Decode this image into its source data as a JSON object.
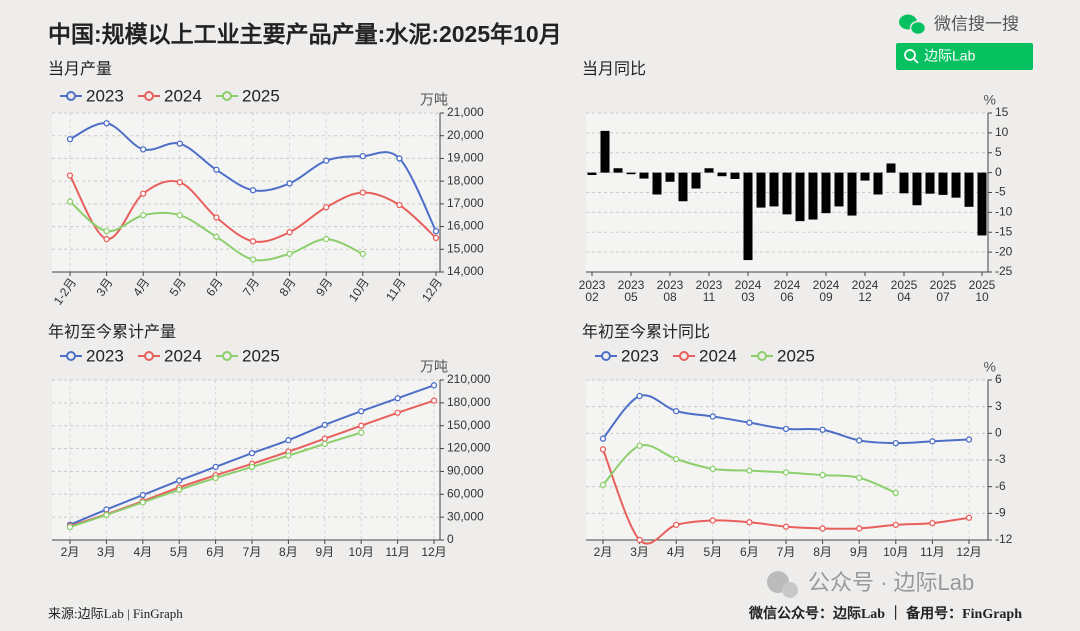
{
  "title": "中国:规模以上工业主要产品产量:水泥:2025年10月",
  "search": {
    "label": "微信搜一搜",
    "button": "边际Lab"
  },
  "footer": {
    "source": "来源:边际Lab | FinGraph",
    "watermark": "公众号 · 边际Lab",
    "account": "微信公众号：边际Lab ｜ 备用号：FinGraph"
  },
  "chart_data": [
    {
      "type": "line",
      "title": "当月产量",
      "ylabel": "万吨",
      "smooth": true,
      "grid": true,
      "categories": [
        "1-2月",
        "3月",
        "4月",
        "5月",
        "6月",
        "7月",
        "8月",
        "9月",
        "10月",
        "11月",
        "12月"
      ],
      "series": [
        {
          "name": "2023",
          "color": "#4e6fc8",
          "values": [
            19850,
            20550,
            19400,
            19650,
            18500,
            17600,
            17900,
            18900,
            19100,
            19000,
            15800
          ]
        },
        {
          "name": "2024",
          "color": "#e8605c",
          "values": [
            18250,
            15450,
            17450,
            17950,
            16400,
            15350,
            15750,
            16850,
            17500,
            16950,
            15500
          ]
        },
        {
          "name": "2025",
          "color": "#8ccf6c",
          "values": [
            17100,
            15800,
            16500,
            16500,
            15550,
            14550,
            14800,
            15450,
            14800,
            null,
            null
          ]
        }
      ],
      "ylim": [
        14000,
        21000
      ],
      "yticks": [
        {
          "value": 14000,
          "label": "14,000"
        },
        {
          "value": 15000,
          "label": "15,000"
        },
        {
          "value": 16000,
          "label": "16,000"
        },
        {
          "value": 17000,
          "label": "17,000"
        },
        {
          "value": 18000,
          "label": "18,000"
        },
        {
          "value": 19000,
          "label": "19,000"
        },
        {
          "value": 20000,
          "label": "20,000"
        },
        {
          "value": 21000,
          "label": "21,000"
        }
      ]
    },
    {
      "type": "bar",
      "title": "当月同比",
      "ylabel": "%",
      "grid": true,
      "color": "#000000",
      "categories": [
        [
          "2023",
          "02"
        ],
        null,
        null,
        [
          "2023",
          "05"
        ],
        null,
        null,
        [
          "2023",
          "08"
        ],
        null,
        null,
        [
          "2023",
          "11"
        ],
        null,
        null,
        [
          "2024",
          "03"
        ],
        null,
        null,
        [
          "2024",
          "06"
        ],
        null,
        null,
        [
          "2024",
          "09"
        ],
        null,
        null,
        [
          "2024",
          "12"
        ],
        null,
        null,
        [
          "2025",
          "04"
        ],
        null,
        null,
        [
          "2025",
          "07"
        ],
        null,
        null,
        [
          "2025",
          "10"
        ]
      ],
      "values": [
        -0.6,
        10.5,
        1.1,
        -0.4,
        -1.5,
        -5.5,
        -2.3,
        -7.2,
        -4.0,
        1.1,
        -0.9,
        -1.6,
        -22.0,
        -8.8,
        -8.5,
        -10.5,
        -12.2,
        -11.8,
        -10.2,
        -8.5,
        -10.8,
        -2.0,
        -5.5,
        2.3,
        -5.2,
        -8.2,
        -5.3,
        -5.6,
        -6.3,
        -8.6,
        -15.8
      ],
      "ylim": [
        -25,
        15
      ],
      "yticks": [
        -25,
        -20,
        -15,
        -10,
        -5,
        0,
        5,
        10,
        15
      ]
    },
    {
      "type": "line",
      "title": "年初至今累计产量",
      "ylabel": "万吨",
      "smooth": true,
      "grid": true,
      "categories": [
        "2月",
        "3月",
        "4月",
        "5月",
        "6月",
        "7月",
        "8月",
        "9月",
        "10月",
        "11月",
        "12月"
      ],
      "series": [
        {
          "name": "2023",
          "color": "#4e6fc8",
          "values": [
            20000,
            40000,
            59000,
            78000,
            96000,
            114000,
            131000,
            151000,
            169000,
            186000,
            203000
          ]
        },
        {
          "name": "2024",
          "color": "#e8605c",
          "values": [
            18300,
            33700,
            51000,
            69000,
            85000,
            100000,
            116000,
            133000,
            150000,
            167000,
            183000
          ]
        },
        {
          "name": "2025",
          "color": "#8ccf6c",
          "values": [
            17100,
            32900,
            49400,
            65900,
            81400,
            95900,
            110700,
            126200,
            141000,
            null,
            null
          ]
        }
      ],
      "ylim": [
        0,
        210000
      ],
      "yticks": [
        0,
        {
          "value": 30000,
          "label": "30,000"
        },
        {
          "value": 60000,
          "label": "60,000"
        },
        {
          "value": 90000,
          "label": "90,000"
        },
        {
          "value": 120000,
          "label": "120,000"
        },
        {
          "value": 150000,
          "label": "150,000"
        },
        {
          "value": 180000,
          "label": "180,000"
        },
        {
          "value": 210000,
          "label": "210,000"
        }
      ]
    },
    {
      "type": "line",
      "title": "年初至今累计同比",
      "ylabel": "%",
      "smooth": true,
      "grid": true,
      "categories": [
        "2月",
        "3月",
        "4月",
        "5月",
        "6月",
        "7月",
        "8月",
        "9月",
        "10月",
        "11月",
        "12月"
      ],
      "series": [
        {
          "name": "2023",
          "color": "#4e6fc8",
          "values": [
            -0.6,
            4.2,
            2.5,
            1.9,
            1.2,
            0.5,
            0.4,
            -0.8,
            -1.1,
            -0.9,
            -0.7
          ]
        },
        {
          "name": "2024",
          "color": "#e8605c",
          "values": [
            -1.8,
            -12.0,
            -10.3,
            -9.8,
            -10.0,
            -10.5,
            -10.7,
            -10.7,
            -10.3,
            -10.1,
            -9.5
          ]
        },
        {
          "name": "2025",
          "color": "#8ccf6c",
          "values": [
            -5.8,
            -1.4,
            -2.9,
            -4.0,
            -4.2,
            -4.4,
            -4.7,
            -5.0,
            -6.7,
            null,
            null
          ]
        }
      ],
      "ylim": [
        -12,
        6
      ],
      "yticks": [
        -12,
        -9,
        -6,
        -3,
        0,
        3,
        6
      ]
    }
  ]
}
